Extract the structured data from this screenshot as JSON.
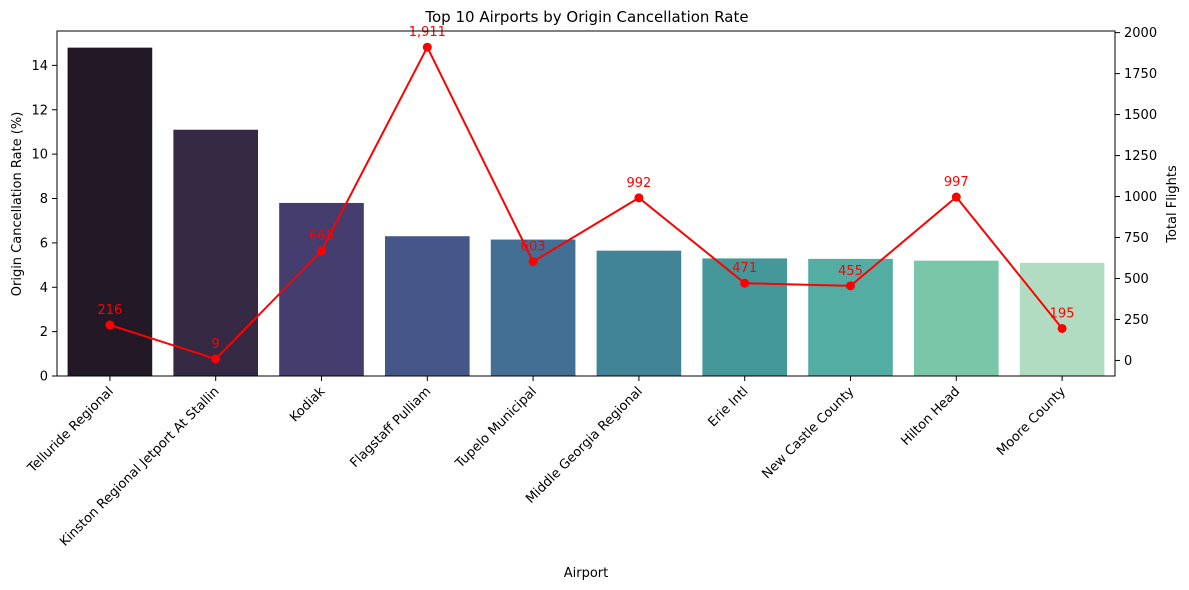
{
  "chart_data": {
    "type": "bar",
    "title": "Top 10 Airports by Origin Cancellation Rate",
    "xlabel": "Airport",
    "ylabel": "Origin Cancellation Rate (%)",
    "y2label": "Total Flights",
    "categories": [
      "Telluride Regional",
      "Kinston Regional Jetport At Stallin",
      "Kodiak",
      "Flagstaff Pulliam",
      "Tupelo Municipal",
      "Middle Georgia Regional",
      "Erie Intl",
      "New Castle County",
      "Hilton Head",
      "Moore County"
    ],
    "bar_series": {
      "values": [
        14.8,
        11.1,
        7.8,
        6.3,
        6.15,
        5.65,
        5.3,
        5.28,
        5.2,
        5.1
      ],
      "colors": [
        "#231926",
        "#352944",
        "#453d6d",
        "#455689",
        "#426f93",
        "#428497",
        "#44989a",
        "#54ada3",
        "#7ac6a8",
        "#b2dcc1"
      ]
    },
    "line_series": {
      "values": [
        216,
        9,
        668,
        1911,
        603,
        992,
        471,
        455,
        997,
        195
      ],
      "labels": [
        "216",
        "9",
        "668",
        "1,911",
        "603",
        "992",
        "471",
        "455",
        "997",
        "195"
      ],
      "color": "#ff0000"
    },
    "ylim": [
      0,
      15.55
    ],
    "y2lim": [
      -95,
      2010
    ],
    "yticks": [
      0,
      2,
      4,
      6,
      8,
      10,
      12,
      14
    ],
    "y2ticks": [
      0,
      250,
      500,
      750,
      1000,
      1250,
      1500,
      1750,
      2000
    ],
    "grid": false,
    "legend": "none"
  }
}
